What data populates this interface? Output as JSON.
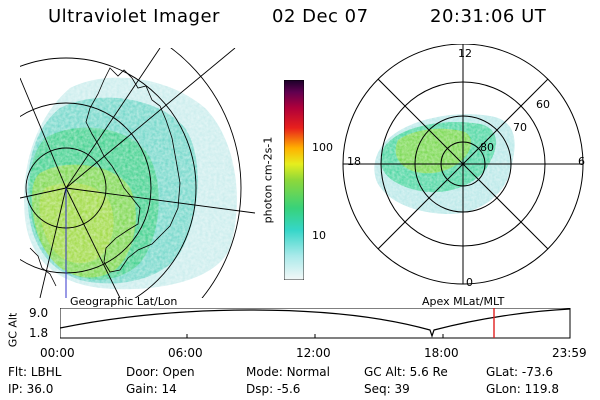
{
  "header": {
    "instrument": "Ultraviolet Imager",
    "date": "02 Dec 07",
    "time": "20:31:06 UT"
  },
  "geo_panel": {
    "label": "Geographic Lat/Lon"
  },
  "polar_panel": {
    "label": "Apex MLat/MLT",
    "mlt_labels": {
      "top": "12",
      "left": "18",
      "right": "6",
      "bottom": "0"
    },
    "lat_labels": [
      "60",
      "70",
      "80"
    ]
  },
  "colorbar": {
    "unit_label": "photon cm-2s-1",
    "ticks": [
      "100",
      "10"
    ]
  },
  "altitude_plot": {
    "ylabel": "GC Alt",
    "yticks": [
      "9.0",
      "1.8"
    ],
    "xticks": [
      "00:00",
      "06:00",
      "12:00",
      "18:00",
      "23:59"
    ],
    "marker_color": "#e02020"
  },
  "status": {
    "row1": [
      {
        "key": "Flt:",
        "value": "LBHL"
      },
      {
        "key": "Door:",
        "value": "Open"
      },
      {
        "key": "Mode:",
        "value": "Normal"
      },
      {
        "key": "GC Alt:",
        "value": "5.6 Re"
      },
      {
        "key": "GLat:",
        "value": "-73.6"
      }
    ],
    "row2": [
      {
        "key": "IP:",
        "value": "36.0"
      },
      {
        "key": "Gain:",
        "value": "14"
      },
      {
        "key": "Dsp:",
        "value": "-5.6"
      },
      {
        "key": "Seq:",
        "value": "39"
      },
      {
        "key": "GLon:",
        "value": "119.8"
      }
    ]
  }
}
